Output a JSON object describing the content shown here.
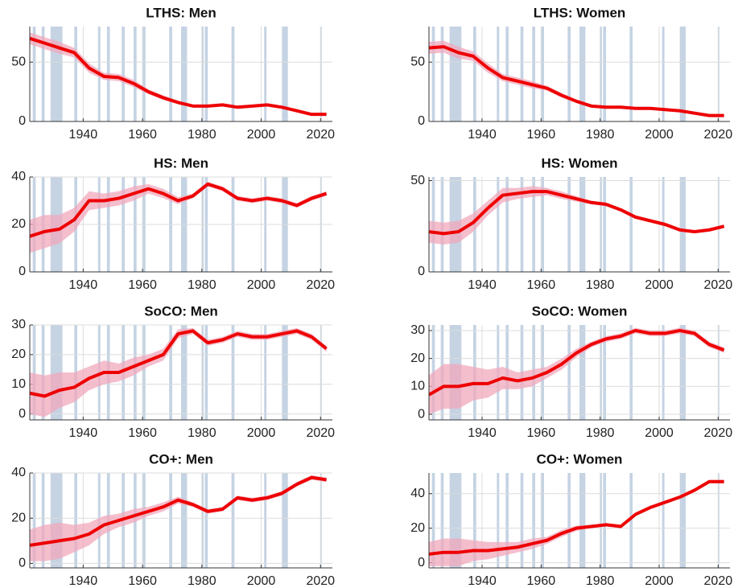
{
  "chart_data": [
    {
      "type": "line",
      "title": "LTHS: Men",
      "color": "#ee0000",
      "band_color": "#f0a8bc",
      "shade_color": "#c5d3e3",
      "x": [
        1922,
        1927,
        1932,
        1937,
        1942,
        1947,
        1952,
        1957,
        1962,
        1967,
        1972,
        1977,
        1982,
        1987,
        1992,
        1997,
        2002,
        2007,
        2012,
        2017,
        2022
      ],
      "values": [
        70,
        66,
        62,
        58,
        45,
        38,
        37,
        32,
        25,
        20,
        16,
        13,
        13,
        14,
        12,
        13,
        14,
        12,
        9,
        6,
        6
      ],
      "errors": [
        5,
        5,
        5,
        4,
        4,
        3,
        3,
        3,
        2,
        2,
        1.5,
        1,
        1,
        1,
        1,
        1,
        1,
        1,
        1,
        1,
        1
      ],
      "shaded_periods": [
        [
          1923,
          1924
        ],
        [
          1926,
          1927
        ],
        [
          1929,
          1933
        ],
        [
          1937,
          1938
        ],
        [
          1945,
          1945.8
        ],
        [
          1948,
          1949
        ],
        [
          1953,
          1954
        ],
        [
          1957,
          1958
        ],
        [
          1960,
          1961
        ],
        [
          1969,
          1970
        ],
        [
          1973,
          1975
        ],
        [
          1980,
          1980.6
        ],
        [
          1981,
          1982
        ],
        [
          1990,
          1991
        ],
        [
          2001,
          2001.8
        ],
        [
          2007,
          2009
        ],
        [
          2020,
          2020.4
        ]
      ],
      "xlim": [
        1922,
        2024
      ],
      "ylim": [
        0,
        80
      ],
      "xticks": [
        1940,
        1960,
        1980,
        2000,
        2020
      ],
      "yticks": [
        0,
        50
      ],
      "grid": true
    },
    {
      "type": "line",
      "title": "LTHS: Women",
      "color": "#ee0000",
      "band_color": "#f0a8bc",
      "shade_color": "#c5d3e3",
      "x": [
        1922,
        1927,
        1932,
        1937,
        1942,
        1947,
        1952,
        1957,
        1962,
        1967,
        1972,
        1977,
        1982,
        1987,
        1992,
        1997,
        2002,
        2007,
        2012,
        2017,
        2022
      ],
      "values": [
        62,
        63,
        58,
        55,
        45,
        37,
        34,
        31,
        28,
        22,
        17,
        13,
        12,
        12,
        11,
        11,
        10,
        9,
        7,
        5,
        5
      ],
      "errors": [
        5,
        5,
        5,
        4,
        4,
        3,
        3,
        3,
        2,
        2,
        1.5,
        1,
        1,
        1,
        1,
        1,
        1,
        1,
        1,
        1,
        1
      ],
      "shaded_periods": [
        [
          1923,
          1924
        ],
        [
          1926,
          1927
        ],
        [
          1929,
          1933
        ],
        [
          1937,
          1938
        ],
        [
          1945,
          1945.8
        ],
        [
          1948,
          1949
        ],
        [
          1953,
          1954
        ],
        [
          1957,
          1958
        ],
        [
          1960,
          1961
        ],
        [
          1969,
          1970
        ],
        [
          1973,
          1975
        ],
        [
          1980,
          1980.6
        ],
        [
          1981,
          1982
        ],
        [
          1990,
          1991
        ],
        [
          2001,
          2001.8
        ],
        [
          2007,
          2009
        ],
        [
          2020,
          2020.4
        ]
      ],
      "xlim": [
        1922,
        2024
      ],
      "ylim": [
        0,
        80
      ],
      "xticks": [
        1940,
        1960,
        1980,
        2000,
        2020
      ],
      "yticks": [
        0,
        50
      ],
      "grid": true
    },
    {
      "type": "line",
      "title": "HS: Men",
      "color": "#ee0000",
      "band_color": "#f0a8bc",
      "shade_color": "#c5d3e3",
      "x": [
        1922,
        1927,
        1932,
        1937,
        1942,
        1947,
        1952,
        1957,
        1962,
        1967,
        1972,
        1977,
        1982,
        1987,
        1992,
        1997,
        2002,
        2007,
        2012,
        2017,
        2022
      ],
      "values": [
        15,
        17,
        18,
        22,
        30,
        30,
        31,
        33,
        35,
        33,
        30,
        32,
        37,
        35,
        31,
        30,
        31,
        30,
        28,
        31,
        33
      ],
      "errors": [
        7,
        7,
        6,
        5,
        4,
        3,
        3,
        3,
        2,
        2,
        1.5,
        1,
        1,
        1,
        1,
        1,
        1,
        1,
        1,
        1,
        1
      ],
      "shaded_periods": [
        [
          1923,
          1924
        ],
        [
          1926,
          1927
        ],
        [
          1929,
          1933
        ],
        [
          1937,
          1938
        ],
        [
          1945,
          1945.8
        ],
        [
          1948,
          1949
        ],
        [
          1953,
          1954
        ],
        [
          1957,
          1958
        ],
        [
          1960,
          1961
        ],
        [
          1969,
          1970
        ],
        [
          1973,
          1975
        ],
        [
          1980,
          1980.6
        ],
        [
          1981,
          1982
        ],
        [
          1990,
          1991
        ],
        [
          2001,
          2001.8
        ],
        [
          2007,
          2009
        ],
        [
          2020,
          2020.4
        ]
      ],
      "xlim": [
        1922,
        2024
      ],
      "ylim": [
        0,
        40
      ],
      "xticks": [
        1940,
        1960,
        1980,
        2000,
        2020
      ],
      "yticks": [
        0,
        20,
        40
      ],
      "grid": true
    },
    {
      "type": "line",
      "title": "HS: Women",
      "color": "#ee0000",
      "band_color": "#f0a8bc",
      "shade_color": "#c5d3e3",
      "x": [
        1922,
        1927,
        1932,
        1937,
        1942,
        1947,
        1952,
        1957,
        1962,
        1967,
        1972,
        1977,
        1982,
        1987,
        1992,
        1997,
        2002,
        2007,
        2012,
        2017,
        2022
      ],
      "values": [
        22,
        21,
        22,
        27,
        35,
        42,
        43,
        44,
        44,
        42,
        40,
        38,
        37,
        34,
        30,
        28,
        26,
        23,
        22,
        23,
        25
      ],
      "errors": [
        6,
        6,
        6,
        5,
        4,
        4,
        3,
        3,
        2,
        2,
        1.5,
        1,
        1,
        1,
        1,
        1,
        1,
        1,
        1,
        1,
        1
      ],
      "shaded_periods": [
        [
          1923,
          1924
        ],
        [
          1926,
          1927
        ],
        [
          1929,
          1933
        ],
        [
          1937,
          1938
        ],
        [
          1945,
          1945.8
        ],
        [
          1948,
          1949
        ],
        [
          1953,
          1954
        ],
        [
          1957,
          1958
        ],
        [
          1960,
          1961
        ],
        [
          1969,
          1970
        ],
        [
          1973,
          1975
        ],
        [
          1980,
          1980.6
        ],
        [
          1981,
          1982
        ],
        [
          1990,
          1991
        ],
        [
          2001,
          2001.8
        ],
        [
          2007,
          2009
        ],
        [
          2020,
          2020.4
        ]
      ],
      "xlim": [
        1922,
        2024
      ],
      "ylim": [
        0,
        52
      ],
      "xticks": [
        1940,
        1960,
        1980,
        2000,
        2020
      ],
      "yticks": [
        0,
        50
      ],
      "grid": true
    },
    {
      "type": "line",
      "title": "SoCO: Men",
      "color": "#ee0000",
      "band_color": "#f0a8bc",
      "shade_color": "#c5d3e3",
      "x": [
        1922,
        1927,
        1932,
        1937,
        1942,
        1947,
        1952,
        1957,
        1962,
        1967,
        1972,
        1977,
        1982,
        1987,
        1992,
        1997,
        2002,
        2007,
        2012,
        2017,
        2022
      ],
      "values": [
        7,
        6,
        8,
        9,
        12,
        14,
        14,
        16,
        18,
        20,
        27,
        28,
        24,
        25,
        27,
        26,
        26,
        27,
        28,
        26,
        22
      ],
      "errors": [
        7,
        7,
        6,
        5,
        4,
        4,
        3,
        3,
        2,
        2,
        1.5,
        1,
        1,
        1,
        1,
        1,
        1,
        1,
        1,
        1,
        1
      ],
      "shaded_periods": [
        [
          1923,
          1924
        ],
        [
          1926,
          1927
        ],
        [
          1929,
          1933
        ],
        [
          1937,
          1938
        ],
        [
          1945,
          1945.8
        ],
        [
          1948,
          1949
        ],
        [
          1953,
          1954
        ],
        [
          1957,
          1958
        ],
        [
          1960,
          1961
        ],
        [
          1969,
          1970
        ],
        [
          1973,
          1975
        ],
        [
          1980,
          1980.6
        ],
        [
          1981,
          1982
        ],
        [
          1990,
          1991
        ],
        [
          2001,
          2001.8
        ],
        [
          2007,
          2009
        ],
        [
          2020,
          2020.4
        ]
      ],
      "xlim": [
        1922,
        2024
      ],
      "ylim": [
        -2,
        30
      ],
      "xticks": [
        1940,
        1960,
        1980,
        2000,
        2020
      ],
      "yticks": [
        0,
        10,
        20,
        30
      ],
      "grid": true
    },
    {
      "type": "line",
      "title": "SoCO: Women",
      "color": "#ee0000",
      "band_color": "#f0a8bc",
      "shade_color": "#c5d3e3",
      "x": [
        1922,
        1927,
        1932,
        1937,
        1942,
        1947,
        1952,
        1957,
        1962,
        1967,
        1972,
        1977,
        1982,
        1987,
        1992,
        1997,
        2002,
        2007,
        2012,
        2017,
        2022
      ],
      "values": [
        7,
        10,
        10,
        11,
        11,
        13,
        12,
        13,
        15,
        18,
        22,
        25,
        27,
        28,
        30,
        29,
        29,
        30,
        29,
        25,
        23
      ],
      "errors": [
        7,
        8,
        8,
        6,
        5,
        4,
        3,
        3,
        2,
        2,
        1.5,
        1,
        1,
        1,
        1,
        1,
        1,
        1,
        1,
        1,
        1
      ],
      "shaded_periods": [
        [
          1923,
          1924
        ],
        [
          1926,
          1927
        ],
        [
          1929,
          1933
        ],
        [
          1937,
          1938
        ],
        [
          1945,
          1945.8
        ],
        [
          1948,
          1949
        ],
        [
          1953,
          1954
        ],
        [
          1957,
          1958
        ],
        [
          1960,
          1961
        ],
        [
          1969,
          1970
        ],
        [
          1973,
          1975
        ],
        [
          1980,
          1980.6
        ],
        [
          1981,
          1982
        ],
        [
          1990,
          1991
        ],
        [
          2001,
          2001.8
        ],
        [
          2007,
          2009
        ],
        [
          2020,
          2020.4
        ]
      ],
      "xlim": [
        1922,
        2024
      ],
      "ylim": [
        -2,
        32
      ],
      "xticks": [
        1940,
        1960,
        1980,
        2000,
        2020
      ],
      "yticks": [
        0,
        10,
        20,
        30
      ],
      "grid": true
    },
    {
      "type": "line",
      "title": "CO+: Men",
      "color": "#ee0000",
      "band_color": "#f0a8bc",
      "shade_color": "#c5d3e3",
      "x": [
        1922,
        1927,
        1932,
        1937,
        1942,
        1947,
        1952,
        1957,
        1962,
        1967,
        1972,
        1977,
        1982,
        1987,
        1992,
        1997,
        2002,
        2007,
        2012,
        2017,
        2022
      ],
      "values": [
        8,
        9,
        10,
        11,
        13,
        17,
        19,
        21,
        23,
        25,
        28,
        26,
        23,
        24,
        29,
        28,
        29,
        31,
        35,
        38,
        37
      ],
      "errors": [
        7,
        8,
        8,
        6,
        5,
        4,
        3,
        3,
        2,
        2,
        1.5,
        1,
        1,
        1,
        1,
        1,
        1,
        1,
        1,
        1,
        1
      ],
      "shaded_periods": [
        [
          1923,
          1924
        ],
        [
          1926,
          1927
        ],
        [
          1929,
          1933
        ],
        [
          1937,
          1938
        ],
        [
          1945,
          1945.8
        ],
        [
          1948,
          1949
        ],
        [
          1953,
          1954
        ],
        [
          1957,
          1958
        ],
        [
          1960,
          1961
        ],
        [
          1969,
          1970
        ],
        [
          1973,
          1975
        ],
        [
          1980,
          1980.6
        ],
        [
          1981,
          1982
        ],
        [
          1990,
          1991
        ],
        [
          2001,
          2001.8
        ],
        [
          2007,
          2009
        ],
        [
          2020,
          2020.4
        ]
      ],
      "xlim": [
        1922,
        2024
      ],
      "ylim": [
        -2,
        40
      ],
      "xticks": [
        1940,
        1960,
        1980,
        2000,
        2020
      ],
      "yticks": [
        0,
        20,
        40
      ],
      "grid": true
    },
    {
      "type": "line",
      "title": "CO+: Women",
      "color": "#ee0000",
      "band_color": "#f0a8bc",
      "shade_color": "#c5d3e3",
      "x": [
        1922,
        1927,
        1932,
        1937,
        1942,
        1947,
        1952,
        1957,
        1962,
        1967,
        1972,
        1977,
        1982,
        1987,
        1992,
        1997,
        2002,
        2007,
        2012,
        2017,
        2022
      ],
      "values": [
        5,
        6,
        6,
        7,
        7,
        8,
        9,
        11,
        13,
        17,
        20,
        21,
        22,
        21,
        28,
        32,
        35,
        38,
        42,
        47,
        47
      ],
      "errors": [
        7,
        8,
        8,
        6,
        5,
        4,
        3,
        3,
        2,
        2,
        1.5,
        1,
        1,
        1,
        1,
        1,
        1,
        1,
        1,
        1,
        1
      ],
      "shaded_periods": [
        [
          1923,
          1924
        ],
        [
          1926,
          1927
        ],
        [
          1929,
          1933
        ],
        [
          1937,
          1938
        ],
        [
          1945,
          1945.8
        ],
        [
          1948,
          1949
        ],
        [
          1953,
          1954
        ],
        [
          1957,
          1958
        ],
        [
          1960,
          1961
        ],
        [
          1969,
          1970
        ],
        [
          1973,
          1975
        ],
        [
          1980,
          1980.6
        ],
        [
          1981,
          1982
        ],
        [
          1990,
          1991
        ],
        [
          2001,
          2001.8
        ],
        [
          2007,
          2009
        ],
        [
          2020,
          2020.4
        ]
      ],
      "xlim": [
        1922,
        2024
      ],
      "ylim": [
        -3,
        52
      ],
      "xticks": [
        1940,
        1960,
        1980,
        2000,
        2020
      ],
      "yticks": [
        0,
        20,
        40
      ],
      "grid": true
    }
  ]
}
